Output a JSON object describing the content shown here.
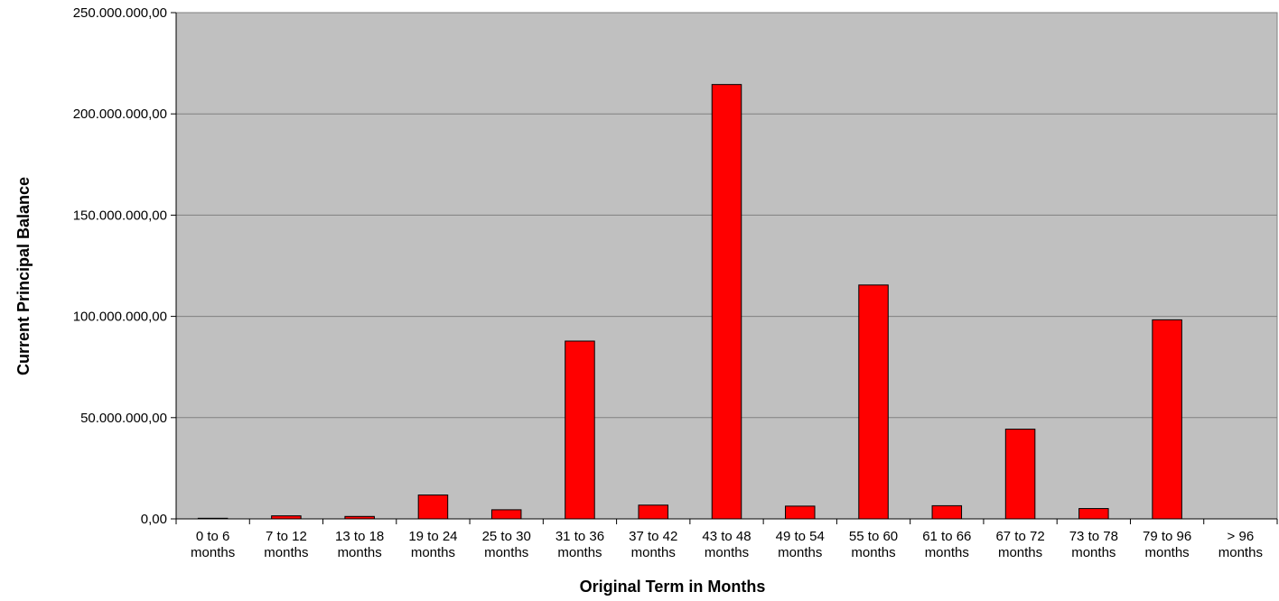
{
  "chart_data": {
    "type": "bar",
    "categories": [
      [
        "0 to 6",
        "months"
      ],
      [
        "7 to 12",
        "months"
      ],
      [
        "13 to 18",
        "months"
      ],
      [
        "19 to 24",
        "months"
      ],
      [
        "25 to 30",
        "months"
      ],
      [
        "31 to 36",
        "months"
      ],
      [
        "37 to 42",
        "months"
      ],
      [
        "43 to 48",
        "months"
      ],
      [
        "49 to 54",
        "months"
      ],
      [
        "55 to 60",
        "months"
      ],
      [
        "61 to 66",
        "months"
      ],
      [
        "67 to 72",
        "months"
      ],
      [
        "73 to 78",
        "months"
      ],
      [
        "79 to 96",
        "months"
      ],
      [
        "> 96",
        "months"
      ]
    ],
    "values": [
      300000,
      1500000,
      1200000,
      11800000,
      4500000,
      87800000,
      6800000,
      214500000,
      6300000,
      115500000,
      6500000,
      44300000,
      5100000,
      98300000,
      0
    ],
    "title": "",
    "xlabel": "Original Term in Months",
    "ylabel": "Current Principal Balance",
    "ylim": [
      0,
      250000000
    ],
    "yticks": [
      "0,00",
      "50.000.000,00",
      "100.000.000,00",
      "150.000.000,00",
      "200.000.000,00",
      "250.000.000,00"
    ],
    "grid": true,
    "legend": "none",
    "colors": {
      "bar": "#ff0000",
      "plot_background": "#c0c0c0",
      "gridline": "#808080"
    }
  }
}
